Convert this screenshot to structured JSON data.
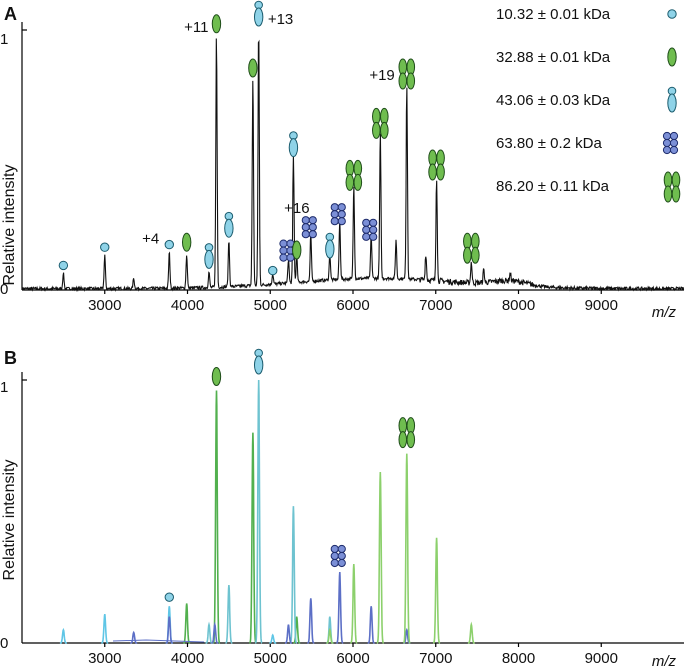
{
  "chart_data": [
    {
      "panel": "A",
      "type": "line",
      "ylabel": "Relative intensity",
      "xlabel": "m/z",
      "xlim": [
        2000,
        10000
      ],
      "ylim": [
        0,
        1
      ],
      "xticks": [
        "3000",
        "4000",
        "5000",
        "6000",
        "7000",
        "8000",
        "9000"
      ],
      "yticks": [
        "0",
        "1"
      ],
      "legend": [
        {
          "label": "10.32 ± 0.01 kDa",
          "glyph": "monomer-10kDa",
          "color": "#8fd3e8"
        },
        {
          "label": "32.88 ± 0.01 kDa",
          "glyph": "monomer-33kDa",
          "color": "#6fbd4f"
        },
        {
          "label": "43.06 ± 0.03 kDa",
          "glyph": "dimer-43kDa",
          "color": "#8fd3e8"
        },
        {
          "label": "63.80 ± 0.2 kDa",
          "glyph": "hexamer-64kDa",
          "color": "#7b8fd6"
        },
        {
          "label": "86.20 ± 0.11 kDa",
          "glyph": "tetramer-86kDa",
          "color": "#6fbd4f"
        }
      ],
      "annotations": [
        {
          "text": "+4",
          "x": 3780
        },
        {
          "text": "+11",
          "x": 4350
        },
        {
          "text": "+13",
          "x": 4850
        },
        {
          "text": "+16",
          "x": 5500
        },
        {
          "text": "+19",
          "x": 6650
        }
      ],
      "peaks": [
        {
          "x": 2500,
          "y": 0.06,
          "glyph": "monomer-10kDa"
        },
        {
          "x": 3000,
          "y": 0.13,
          "glyph": "monomer-10kDa"
        },
        {
          "x": 3350,
          "y": 0.04
        },
        {
          "x": 3780,
          "y": 0.14,
          "glyph": "monomer-10kDa"
        },
        {
          "x": 3990,
          "y": 0.13,
          "glyph": "monomer-33kDa"
        },
        {
          "x": 4260,
          "y": 0.06,
          "glyph": "dimer-43kDa"
        },
        {
          "x": 4350,
          "y": 0.97,
          "glyph": "monomer-33kDa"
        },
        {
          "x": 4500,
          "y": 0.18,
          "glyph": "dimer-43kDa"
        },
        {
          "x": 4790,
          "y": 0.8,
          "glyph": "monomer-33kDa"
        },
        {
          "x": 4860,
          "y": 1.0,
          "glyph": "dimer-43kDa"
        },
        {
          "x": 5030,
          "y": 0.04,
          "glyph": "monomer-10kDa"
        },
        {
          "x": 5220,
          "y": 0.09,
          "glyph": "hexamer-64kDa"
        },
        {
          "x": 5280,
          "y": 0.49,
          "glyph": "dimer-43kDa"
        },
        {
          "x": 5320,
          "y": 0.1,
          "glyph": "monomer-33kDa"
        },
        {
          "x": 5490,
          "y": 0.18,
          "glyph": "hexamer-64kDa"
        },
        {
          "x": 5720,
          "y": 0.1,
          "glyph": "dimer-43kDa"
        },
        {
          "x": 5840,
          "y": 0.23,
          "glyph": "hexamer-64kDa"
        },
        {
          "x": 6010,
          "y": 0.36,
          "glyph": "tetramer-86kDa"
        },
        {
          "x": 6220,
          "y": 0.17,
          "glyph": "hexamer-64kDa"
        },
        {
          "x": 6330,
          "y": 0.56,
          "glyph": "tetramer-86kDa"
        },
        {
          "x": 6520,
          "y": 0.15
        },
        {
          "x": 6650,
          "y": 0.75,
          "glyph": "tetramer-86kDa"
        },
        {
          "x": 6880,
          "y": 0.1
        },
        {
          "x": 7010,
          "y": 0.4,
          "glyph": "tetramer-86kDa"
        },
        {
          "x": 7430,
          "y": 0.08,
          "glyph": "tetramer-86kDa"
        },
        {
          "x": 7580,
          "y": 0.05
        },
        {
          "x": 7900,
          "y": 0.03
        }
      ]
    },
    {
      "panel": "B",
      "type": "line",
      "ylabel": "Relative intensity",
      "xlabel": "m/z",
      "xlim": [
        2000,
        10000
      ],
      "ylim": [
        0,
        1
      ],
      "xticks": [
        "3000",
        "4000",
        "5000",
        "6000",
        "7000",
        "8000",
        "9000"
      ],
      "yticks": [
        "0",
        "1"
      ],
      "series": [
        {
          "glyph": "monomer-10kDa",
          "color": "#5fc6e6",
          "peaks": [
            [
              2500,
              0.05
            ],
            [
              3000,
              0.11
            ],
            [
              3780,
              0.14
            ],
            [
              5030,
              0.03
            ]
          ]
        },
        {
          "glyph": "monomer-33kDa",
          "color": "#52b04e",
          "peaks": [
            [
              3990,
              0.15
            ],
            [
              4350,
              0.96
            ],
            [
              4790,
              0.8
            ],
            [
              5320,
              0.1
            ]
          ]
        },
        {
          "glyph": "dimer-43kDa",
          "color": "#6ec3d0",
          "peaks": [
            [
              4260,
              0.07
            ],
            [
              4500,
              0.22
            ],
            [
              4860,
              1.0
            ],
            [
              5280,
              0.52
            ],
            [
              5720,
              0.1
            ]
          ]
        },
        {
          "glyph": "hexamer-64kDa",
          "color": "#5c6fc6",
          "peaks": [
            [
              3350,
              0.04
            ],
            [
              3780,
              0.1
            ],
            [
              4330,
              0.07
            ],
            [
              5220,
              0.07
            ],
            [
              5490,
              0.17
            ],
            [
              5840,
              0.27
            ],
            [
              6220,
              0.14
            ],
            [
              6650,
              0.05
            ]
          ]
        },
        {
          "glyph": "tetramer-86kDa",
          "color": "#8cd06c",
          "peaks": [
            [
              5720,
              0.05
            ],
            [
              6010,
              0.3
            ],
            [
              6330,
              0.65
            ],
            [
              6650,
              0.72
            ],
            [
              7010,
              0.4
            ],
            [
              7430,
              0.07
            ]
          ]
        }
      ],
      "markers": [
        {
          "x": 3780,
          "y": 0.14,
          "glyph": "monomer-10kDa"
        },
        {
          "x": 4350,
          "y": 0.96,
          "glyph": "monomer-33kDa"
        },
        {
          "x": 4860,
          "y": 1.0,
          "glyph": "dimer-43kDa"
        },
        {
          "x": 5840,
          "y": 0.27,
          "glyph": "hexamer-64kDa"
        },
        {
          "x": 6650,
          "y": 0.72,
          "glyph": "tetramer-86kDa"
        }
      ]
    }
  ]
}
